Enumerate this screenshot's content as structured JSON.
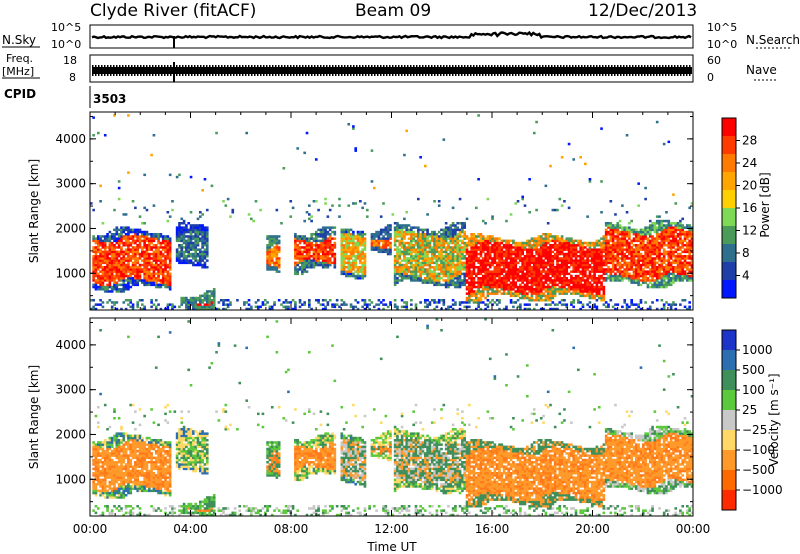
{
  "header": {
    "station": "Clyde River (fitACF)",
    "beam": "Beam 09",
    "date": "12/Dec/2013"
  },
  "noise_panel": {
    "left_label": "N.Sky",
    "right_label": "N.Search",
    "left_ticks": [
      "10^5",
      "10^0"
    ],
    "right_ticks": [
      "10^5",
      "10^0"
    ]
  },
  "freq_panel": {
    "left_label_line1": "Freq.",
    "left_label_line2": "[MHz]",
    "left_ticks": [
      "18",
      "8"
    ],
    "right_label": "Nave",
    "right_ticks": [
      "60",
      "0"
    ]
  },
  "cpid": {
    "label": "CPID",
    "value": "3503"
  },
  "chart_data": [
    {
      "type": "heatmap",
      "panel": "power",
      "ylabel": "Slant Range [km]",
      "xlabel": "",
      "ylim": [
        180,
        4600
      ],
      "xlim_hours": [
        0,
        24
      ],
      "y_ticks": [
        1000,
        2000,
        3000,
        4000
      ],
      "colorbar": {
        "label": "Power [dB]",
        "ticks": [
          "28",
          "24",
          "20",
          "16",
          "12",
          "8",
          "4"
        ],
        "colors": [
          "#ff0000",
          "#ff3b00",
          "#ff7a00",
          "#ffa500",
          "#ffd000",
          "#7ed957",
          "#4a9a5a",
          "#2e6f8e",
          "#1e3fa8",
          "#0018ff"
        ]
      }
    },
    {
      "type": "heatmap",
      "panel": "velocity",
      "ylabel": "Slant Range [km]",
      "xlabel": "Time UT",
      "ylim": [
        180,
        4600
      ],
      "xlim_hours": [
        0,
        24
      ],
      "y_ticks": [
        1000,
        2000,
        3000,
        4000
      ],
      "x_ticks": [
        "00:00",
        "04:00",
        "08:00",
        "12:00",
        "16:00",
        "20:00",
        "00:00"
      ],
      "colorbar": {
        "label": "Velocity [m s⁻¹]",
        "ticks": [
          "1000",
          "500",
          "100",
          "25",
          "−25",
          "−100",
          "−500",
          "−1000"
        ],
        "colors": [
          "#1c34c8",
          "#2b6fb0",
          "#3f8f5a",
          "#5cc83c",
          "#c8c8c8",
          "#ffd866",
          "#ff9a2a",
          "#ff6a00",
          "#ff2a00"
        ]
      }
    }
  ]
}
